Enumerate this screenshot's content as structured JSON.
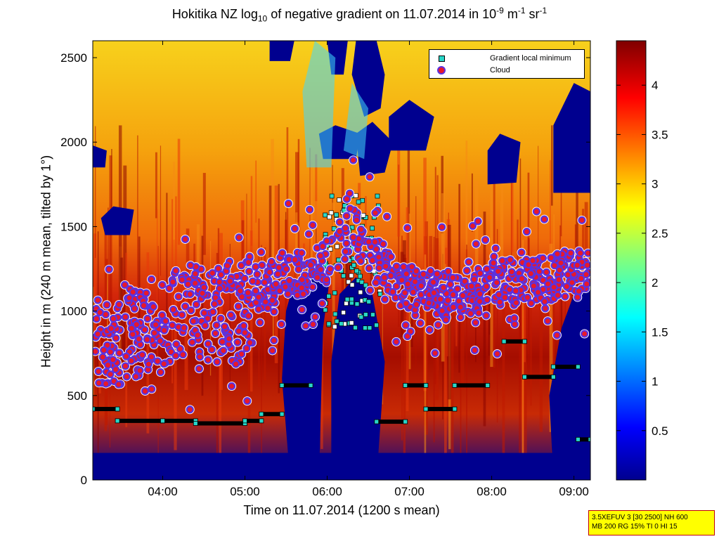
{
  "title": {
    "prefix": "Hokitika NZ log",
    "sub": "10",
    "mid": " of negative gradient on 11.07.2014 in 10",
    "sup1": "-9",
    "unit1": " m",
    "sup2": "-1",
    "unit2": " sr",
    "sup3": "-1"
  },
  "xlabel": "Time on 11.07.2014 (1200 s mean)",
  "ylabel": "Height in m (240 m mean, tilted by 1°)",
  "legend": {
    "gradient": "Gradient local minimum",
    "cloud": "Cloud"
  },
  "info": {
    "line1": "3.5XEFUV 3 [30 2500] NH 600",
    "line2": "MB 200 RG 15% TI 0 HI 15"
  },
  "colors": {
    "background_low": "#00008f",
    "cloud_fill": "#e8182a",
    "cloud_edge": "#5a33e0",
    "gradient_fill": "#28d6c8"
  },
  "chart_data": {
    "type": "heatmap",
    "colormap": "jet",
    "x_ticks": [
      "04:00",
      "05:00",
      "06:00",
      "07:00",
      "08:00",
      "09:00"
    ],
    "x_range_hours": [
      3.15,
      9.2
    ],
    "y_ticks": [
      0,
      500,
      1000,
      1500,
      2000,
      2500
    ],
    "ylim": [
      0,
      2600
    ],
    "colorbar": {
      "ticks": [
        0.5,
        1,
        1.5,
        2,
        2.5,
        3,
        3.5,
        4
      ],
      "range": [
        0,
        4.45
      ]
    },
    "cloud_base_band_m": [
      {
        "time_hours": 3.4,
        "height": 820
      },
      {
        "time_hours": 3.9,
        "height": 930
      },
      {
        "time_hours": 4.4,
        "height": 1000
      },
      {
        "time_hours": 4.9,
        "height": 960
      },
      {
        "time_hours": 5.2,
        "height": 1130
      },
      {
        "time_hours": 5.5,
        "height": 1220
      },
      {
        "time_hours": 5.9,
        "height": 1250
      },
      {
        "time_hours": 6.3,
        "height": 1500
      },
      {
        "time_hours": 6.6,
        "height": 1300
      },
      {
        "time_hours": 7.0,
        "height": 1120
      },
      {
        "time_hours": 7.5,
        "height": 1080
      },
      {
        "time_hours": 8.0,
        "height": 1150
      },
      {
        "time_hours": 8.5,
        "height": 1180
      },
      {
        "time_hours": 9.0,
        "height": 1220
      }
    ],
    "gradient_minimum_segments": [
      {
        "t0": 3.15,
        "t1": 3.45,
        "height": 420
      },
      {
        "t0": 3.45,
        "t1": 4.0,
        "height": 350
      },
      {
        "t0": 4.0,
        "t1": 4.4,
        "height": 350
      },
      {
        "t0": 4.4,
        "t1": 5.0,
        "height": 335
      },
      {
        "t0": 5.0,
        "t1": 5.2,
        "height": 350
      },
      {
        "t0": 5.2,
        "t1": 5.45,
        "height": 390
      },
      {
        "t0": 5.45,
        "t1": 5.8,
        "height": 560
      },
      {
        "t0": 6.6,
        "t1": 6.95,
        "height": 345
      },
      {
        "t0": 6.95,
        "t1": 7.2,
        "height": 560
      },
      {
        "t0": 7.2,
        "t1": 7.55,
        "height": 420
      },
      {
        "t0": 7.55,
        "t1": 7.95,
        "height": 560
      },
      {
        "t0": 8.15,
        "t1": 8.4,
        "height": 820
      },
      {
        "t0": 8.4,
        "t1": 8.75,
        "height": 610
      },
      {
        "t0": 8.75,
        "t1": 9.05,
        "height": 670
      },
      {
        "t0": 9.05,
        "t1": 9.2,
        "height": 240
      }
    ]
  }
}
